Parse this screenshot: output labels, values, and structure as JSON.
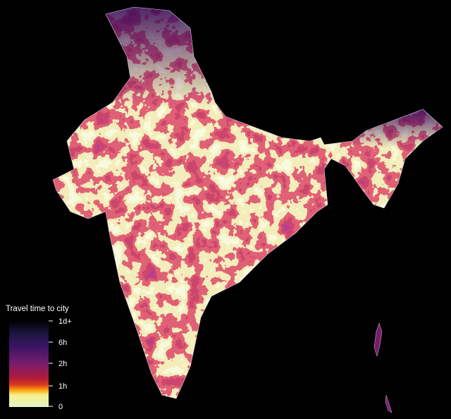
{
  "legend": {
    "title": "Travel time to city",
    "ticks": [
      "1d+",
      "6h",
      "2h",
      "1h",
      "0"
    ]
  }
}
